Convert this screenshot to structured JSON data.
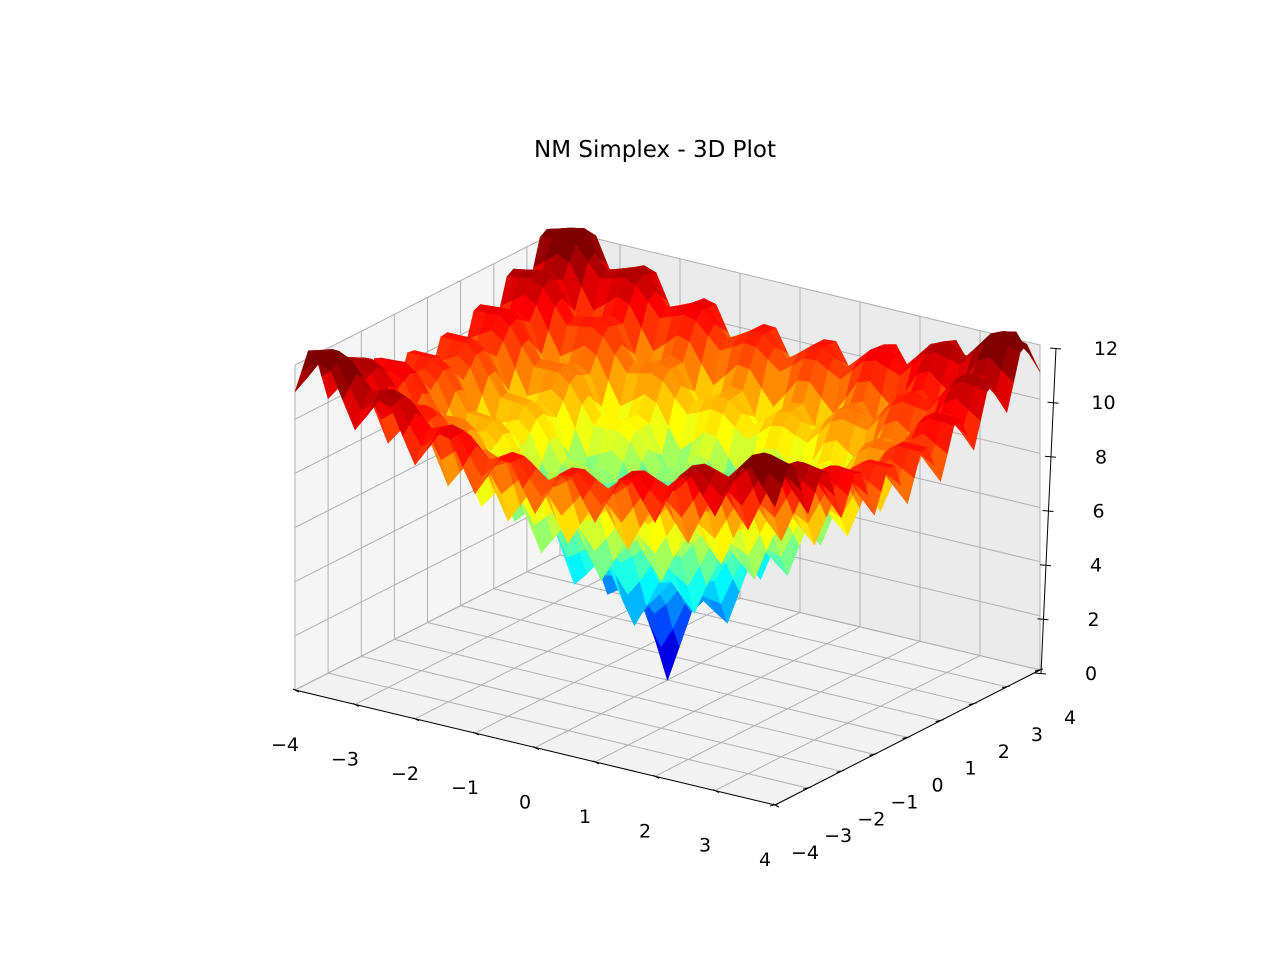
{
  "chart_data": {
    "type": "surface3d",
    "title": "NM Simplex - 3D Plot",
    "xlabel": "",
    "ylabel": "",
    "zlabel": "",
    "xlim": [
      -4,
      4
    ],
    "ylim": [
      -4,
      4
    ],
    "zlim": [
      0,
      12
    ],
    "x_ticks": [
      "−4",
      "−3",
      "−2",
      "−1",
      "0",
      "1",
      "2",
      "3",
      "4"
    ],
    "y_ticks": [
      "−4",
      "−3",
      "−2",
      "−1",
      "0",
      "1",
      "2",
      "3",
      "4"
    ],
    "z_ticks": [
      "0",
      "2",
      "4",
      "6",
      "8",
      "10",
      "12"
    ],
    "grid": true,
    "colormap": "jet",
    "surface": {
      "function": "Ackley",
      "x_range": [
        -4,
        4
      ],
      "y_range": [
        -4,
        4
      ],
      "steps": 40,
      "minimum": {
        "x": 0,
        "y": 0,
        "z": 0
      },
      "corner_max": 12
    },
    "pane_color": "#f2f2f2",
    "grid_color": "#b0b0b0"
  }
}
